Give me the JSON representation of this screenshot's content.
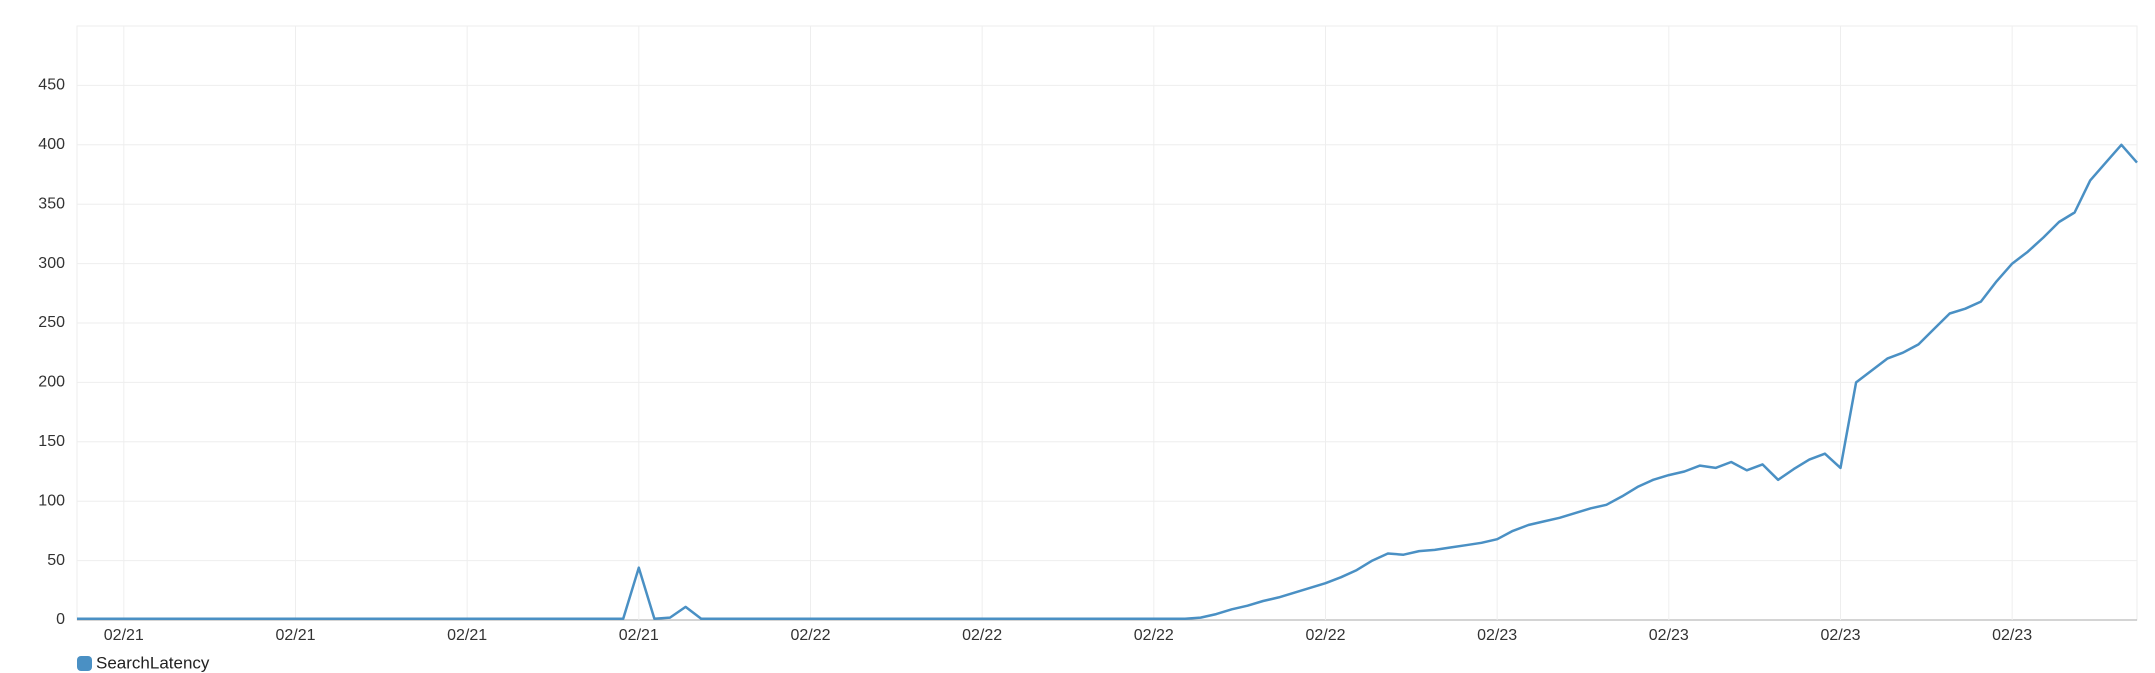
{
  "chart_data": {
    "type": "line",
    "categories": [
      null,
      null,
      null,
      "02/21",
      null,
      null,
      null,
      null,
      null,
      null,
      null,
      null,
      null,
      null,
      "02/21",
      null,
      null,
      null,
      null,
      null,
      null,
      null,
      null,
      null,
      null,
      "02/21",
      null,
      null,
      null,
      null,
      null,
      null,
      null,
      null,
      null,
      null,
      "02/21",
      null,
      null,
      null,
      null,
      null,
      null,
      null,
      null,
      null,
      null,
      "02/22",
      null,
      null,
      null,
      null,
      null,
      null,
      null,
      null,
      null,
      null,
      "02/22",
      null,
      null,
      null,
      null,
      null,
      null,
      null,
      null,
      null,
      null,
      "02/22",
      null,
      null,
      null,
      null,
      null,
      null,
      null,
      null,
      null,
      null,
      "02/22",
      null,
      null,
      null,
      null,
      null,
      null,
      null,
      null,
      null,
      null,
      "02/23",
      null,
      null,
      null,
      null,
      null,
      null,
      null,
      null,
      null,
      null,
      "02/23",
      null,
      null,
      null,
      null,
      null,
      null,
      null,
      null,
      null,
      null,
      "02/23",
      null,
      null,
      null,
      null,
      null,
      null,
      null,
      null,
      null,
      null,
      "02/23",
      null,
      null,
      null,
      null,
      null,
      null,
      null,
      null
    ],
    "series": [
      {
        "name": "SearchLatency",
        "color": "#4a90c4",
        "values": [
          1,
          1,
          1,
          1,
          1,
          1,
          1,
          1,
          1,
          1,
          1,
          1,
          1,
          1,
          1,
          1,
          1,
          1,
          1,
          1,
          1,
          1,
          1,
          1,
          1,
          1,
          1,
          1,
          1,
          1,
          1,
          1,
          1,
          1,
          1,
          1,
          44,
          1,
          2,
          11,
          1,
          1,
          1,
          1,
          1,
          1,
          1,
          1,
          1,
          1,
          1,
          1,
          1,
          1,
          1,
          1,
          1,
          1,
          1,
          1,
          1,
          1,
          1,
          1,
          1,
          1,
          1,
          1,
          1,
          1,
          1,
          1,
          2,
          5,
          9,
          12,
          16,
          19,
          23,
          27,
          31,
          36,
          42,
          50,
          56,
          55,
          58,
          59,
          61,
          63,
          65,
          68,
          75,
          80,
          83,
          86,
          90,
          94,
          97,
          104,
          112,
          118,
          122,
          125,
          130,
          128,
          133,
          126,
          131,
          118,
          127,
          135,
          140,
          128,
          200,
          210,
          220,
          225,
          232,
          245,
          258,
          262,
          268,
          285,
          300,
          310,
          322,
          335,
          343,
          370,
          385,
          400,
          385
        ]
      }
    ],
    "ylim": [
      0,
      500
    ],
    "yticks": [
      0,
      50,
      100,
      150,
      200,
      250,
      300,
      350,
      400,
      450
    ],
    "grid": true
  }
}
